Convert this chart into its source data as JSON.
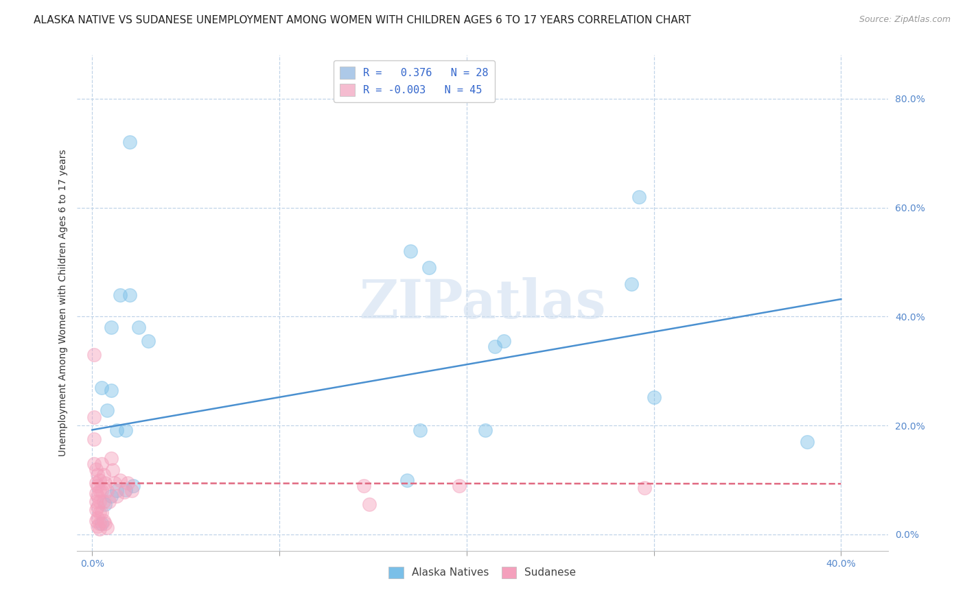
{
  "title": "ALASKA NATIVE VS SUDANESE UNEMPLOYMENT AMONG WOMEN WITH CHILDREN AGES 6 TO 17 YEARS CORRELATION CHART",
  "source": "Source: ZipAtlas.com",
  "xlim": [
    -0.008,
    0.425
  ],
  "ylim": [
    -0.03,
    0.88
  ],
  "xlabel_values": [
    0.0,
    0.1,
    0.2,
    0.3,
    0.4
  ],
  "ylabel_values": [
    0.0,
    0.2,
    0.4,
    0.6,
    0.8
  ],
  "ylabel": "Unemployment Among Women with Children Ages 6 to 17 years",
  "watermark": "ZIPatlas",
  "legend_entries": [
    {
      "label": "R =   0.376   N = 28",
      "color": "#adc9e8"
    },
    {
      "label": "R = -0.003   N = 45",
      "color": "#f5bcd0"
    }
  ],
  "blue_color": "#7abfe8",
  "pink_color": "#f4a0bc",
  "blue_line_color": "#4a90d0",
  "pink_line_color": "#e06880",
  "alaska_points": [
    [
      0.02,
      0.72
    ],
    [
      0.01,
      0.38
    ],
    [
      0.015,
      0.44
    ],
    [
      0.02,
      0.44
    ],
    [
      0.025,
      0.38
    ],
    [
      0.03,
      0.355
    ],
    [
      0.01,
      0.265
    ],
    [
      0.018,
      0.192
    ],
    [
      0.013,
      0.192
    ],
    [
      0.005,
      0.27
    ],
    [
      0.008,
      0.228
    ],
    [
      0.005,
      0.02
    ],
    [
      0.007,
      0.055
    ],
    [
      0.01,
      0.07
    ],
    [
      0.013,
      0.08
    ],
    [
      0.018,
      0.082
    ],
    [
      0.022,
      0.09
    ],
    [
      0.18,
      0.49
    ],
    [
      0.22,
      0.355
    ],
    [
      0.215,
      0.345
    ],
    [
      0.17,
      0.52
    ],
    [
      0.21,
      0.192
    ],
    [
      0.175,
      0.192
    ],
    [
      0.168,
      0.1
    ],
    [
      0.3,
      0.252
    ],
    [
      0.292,
      0.62
    ],
    [
      0.288,
      0.46
    ],
    [
      0.382,
      0.17
    ]
  ],
  "sudanese_points": [
    [
      0.001,
      0.215
    ],
    [
      0.001,
      0.175
    ],
    [
      0.001,
      0.13
    ],
    [
      0.001,
      0.33
    ],
    [
      0.002,
      0.12
    ],
    [
      0.002,
      0.095
    ],
    [
      0.002,
      0.075
    ],
    [
      0.002,
      0.06
    ],
    [
      0.002,
      0.045
    ],
    [
      0.002,
      0.025
    ],
    [
      0.003,
      0.11
    ],
    [
      0.003,
      0.09
    ],
    [
      0.003,
      0.07
    ],
    [
      0.003,
      0.05
    ],
    [
      0.003,
      0.03
    ],
    [
      0.003,
      0.015
    ],
    [
      0.004,
      0.1
    ],
    [
      0.004,
      0.08
    ],
    [
      0.004,
      0.06
    ],
    [
      0.004,
      0.04
    ],
    [
      0.004,
      0.02
    ],
    [
      0.004,
      0.01
    ],
    [
      0.005,
      0.13
    ],
    [
      0.005,
      0.08
    ],
    [
      0.005,
      0.04
    ],
    [
      0.006,
      0.11
    ],
    [
      0.006,
      0.06
    ],
    [
      0.006,
      0.025
    ],
    [
      0.007,
      0.095
    ],
    [
      0.007,
      0.02
    ],
    [
      0.008,
      0.08
    ],
    [
      0.008,
      0.012
    ],
    [
      0.009,
      0.06
    ],
    [
      0.01,
      0.14
    ],
    [
      0.011,
      0.118
    ],
    [
      0.012,
      0.095
    ],
    [
      0.013,
      0.07
    ],
    [
      0.015,
      0.1
    ],
    [
      0.017,
      0.078
    ],
    [
      0.019,
      0.095
    ],
    [
      0.021,
      0.08
    ],
    [
      0.145,
      0.09
    ],
    [
      0.148,
      0.055
    ],
    [
      0.196,
      0.09
    ],
    [
      0.295,
      0.086
    ]
  ],
  "blue_line": {
    "x0": 0.0,
    "y0": 0.192,
    "x1": 0.4,
    "y1": 0.432
  },
  "pink_line": {
    "x0": 0.0,
    "y0": 0.094,
    "x1": 0.4,
    "y1": 0.093
  },
  "title_fontsize": 11,
  "axis_tick_fontsize": 10,
  "ylabel_fontsize": 10,
  "legend_fontsize": 11,
  "bg_color": "#ffffff",
  "grid_color": "#c0d4e8",
  "tick_color": "#5588cc",
  "axis_color": "#a0b8d0"
}
